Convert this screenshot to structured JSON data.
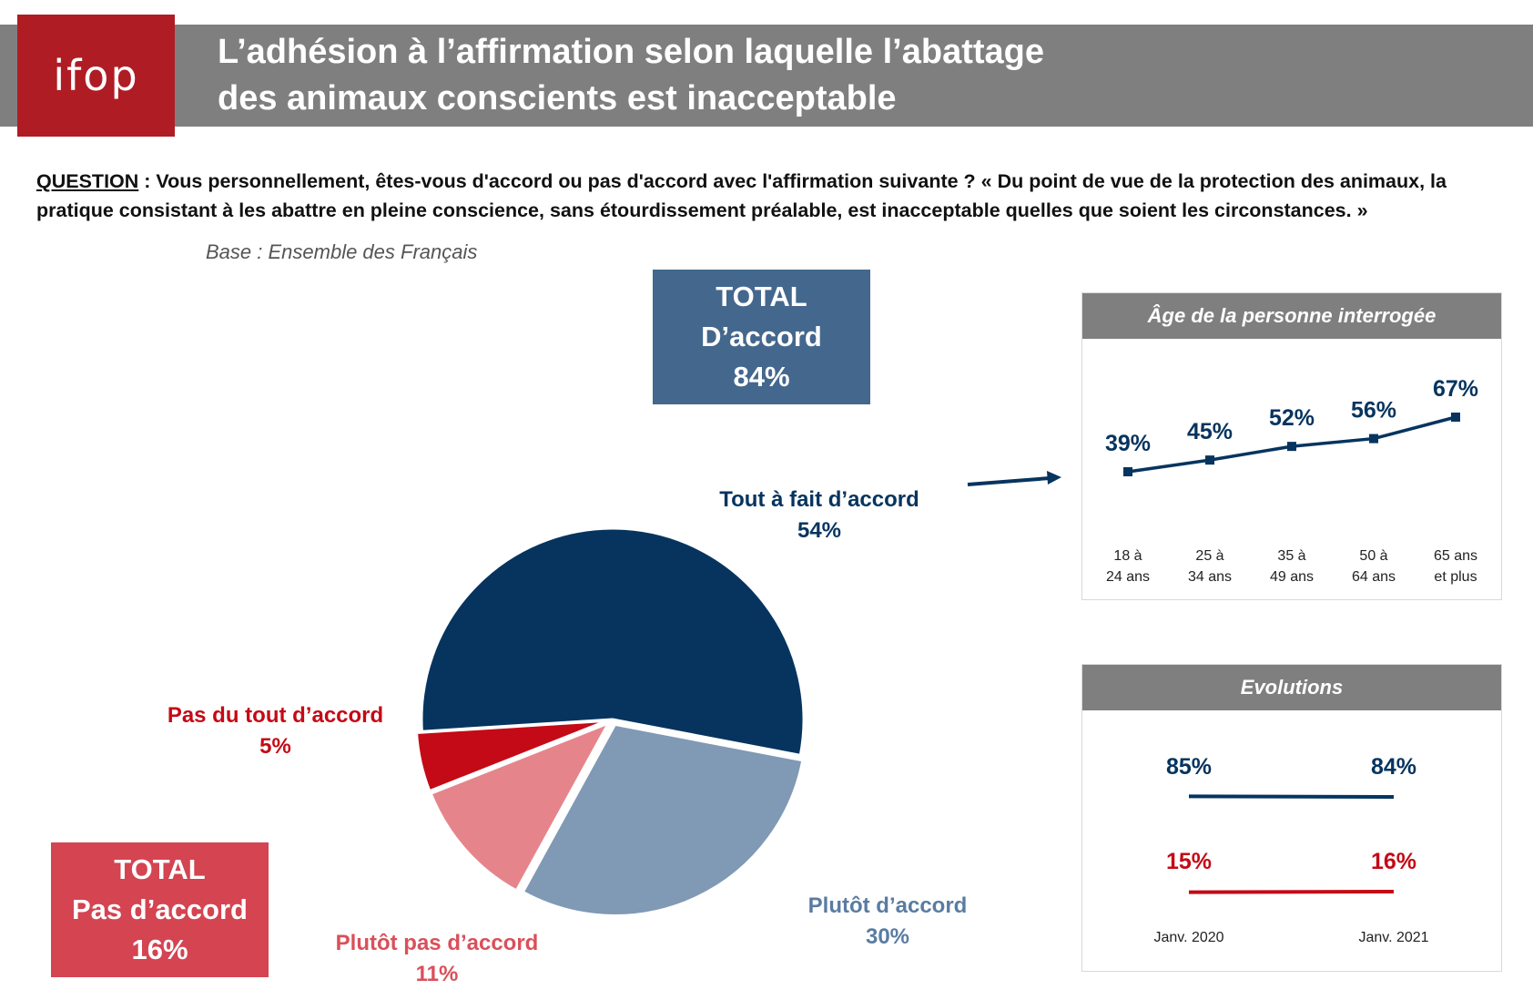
{
  "header": {
    "logo_text": "ifop",
    "title_line1": "L’adhésion à l’affirmation selon laquelle l’abattage",
    "title_line2": "des animaux conscients est inacceptable"
  },
  "question": {
    "label": "QUESTION",
    "text": " : Vous personnellement, êtes-vous d'accord ou pas d'accord avec l'affirmation suivante ? « Du point de vue de la protection des animaux, la pratique consistant à les abattre en pleine conscience, sans étourdissement préalable, est inacceptable quelles que soient les circonstances. »"
  },
  "base": "Base : Ensemble des Français",
  "totals": {
    "agree": {
      "line1": "TOTAL",
      "line2": "D’accord",
      "value": "84%"
    },
    "disagree": {
      "line1": "TOTAL",
      "line2": "Pas d’accord",
      "value": "16%"
    }
  },
  "colors": {
    "tout_a_fait": "#06345f",
    "plutot": "#8099b5",
    "plutot_pas": "#e5858b",
    "pas_du_tout": "#c40a16",
    "header_grey": "#7f7f7f",
    "logo_red": "#b01c24"
  },
  "chart_data": [
    {
      "type": "pie",
      "slices": [
        {
          "label": "Tout à fait d’accord",
          "value": 54,
          "display": "54%"
        },
        {
          "label": "Plutôt d’accord",
          "value": 30,
          "display": "30%"
        },
        {
          "label": "Plutôt pas d’accord",
          "value": 11,
          "display": "11%"
        },
        {
          "label": "Pas du tout d’accord",
          "value": 5,
          "display": "5%"
        }
      ]
    },
    {
      "type": "line",
      "title": "Âge de la personne interrogée",
      "categories": [
        [
          "18 à",
          "24 ans"
        ],
        [
          "25 à",
          "34 ans"
        ],
        [
          "35 à",
          "49 ans"
        ],
        [
          "50 à",
          "64 ans"
        ],
        [
          "65 ans",
          "et plus"
        ]
      ],
      "values": [
        39,
        45,
        52,
        56,
        67
      ],
      "labels": [
        "39%",
        "45%",
        "52%",
        "56%",
        "67%"
      ]
    },
    {
      "type": "line",
      "title": "Evolutions",
      "categories": [
        "Janv. 2020",
        "Janv. 2021"
      ],
      "series": [
        {
          "values": [
            85,
            84
          ],
          "labels": [
            "85%",
            "84%"
          ],
          "color": "#06345f"
        },
        {
          "values": [
            15,
            16
          ],
          "labels": [
            "15%",
            "16%"
          ],
          "color": "#c40a16"
        }
      ]
    }
  ]
}
